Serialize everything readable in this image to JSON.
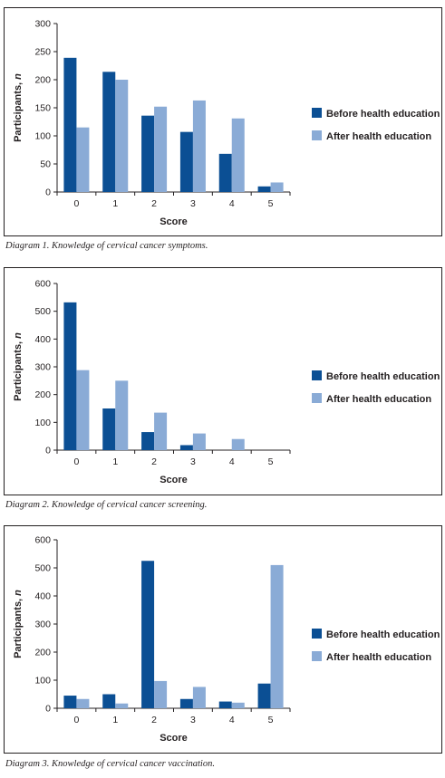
{
  "colors": {
    "before": "#0b4f94",
    "after": "#8aabd6",
    "axis": "#231f20"
  },
  "chart_data": [
    {
      "type": "bar",
      "title": "",
      "caption": "Diagram 1. Knowledge of cervical cancer symptoms.",
      "xlabel": "Score",
      "ylabel": "Participants, n",
      "categories": [
        "0",
        "1",
        "2",
        "3",
        "4",
        "5"
      ],
      "yticks": [
        "0",
        "50",
        "100",
        "150",
        "200",
        "250",
        "300"
      ],
      "ylim": [
        0,
        300
      ],
      "legend_position": "right",
      "series": [
        {
          "name": "Before health education",
          "values": [
            239,
            214,
            136,
            107,
            68,
            10
          ]
        },
        {
          "name": "After health education",
          "values": [
            115,
            200,
            152,
            163,
            131,
            17
          ]
        }
      ]
    },
    {
      "type": "bar",
      "title": "",
      "caption": "Diagram 2. Knowledge of cervical cancer screening.",
      "xlabel": "Score",
      "ylabel": "Participants, n",
      "categories": [
        "0",
        "1",
        "2",
        "3",
        "4",
        "5"
      ],
      "yticks": [
        "0",
        "100",
        "200",
        "300",
        "400",
        "500",
        "600"
      ],
      "ylim": [
        0,
        600
      ],
      "legend_position": "right",
      "series": [
        {
          "name": "Before health education",
          "values": [
            532,
            150,
            65,
            18,
            0,
            0
          ]
        },
        {
          "name": "After health education",
          "values": [
            288,
            250,
            135,
            60,
            40,
            0
          ]
        }
      ]
    },
    {
      "type": "bar",
      "title": "",
      "caption": "Diagram 3. Knowledge of cervical cancer vaccination.",
      "xlabel": "Score",
      "ylabel": "Participants, n",
      "categories": [
        "0",
        "1",
        "2",
        "3",
        "4",
        "5"
      ],
      "yticks": [
        "0",
        "100",
        "200",
        "300",
        "400",
        "500",
        "600"
      ],
      "ylim": [
        0,
        600
      ],
      "legend_position": "right",
      "series": [
        {
          "name": "Before health education",
          "values": [
            45,
            50,
            525,
            33,
            24,
            88
          ]
        },
        {
          "name": "After health education",
          "values": [
            33,
            17,
            97,
            76,
            20,
            510
          ]
        }
      ]
    }
  ]
}
